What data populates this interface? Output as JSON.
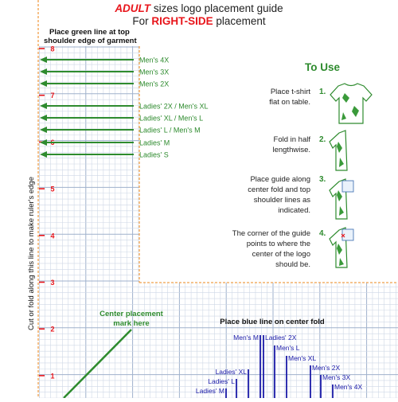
{
  "header": {
    "adult": "ADULT",
    "line1_rest": " sizes logo placement guide",
    "line2_prefix": "For ",
    "right_side": "RIGHT-SIDE",
    "line2_suffix": " placement"
  },
  "green_line_caption": [
    "Place green line at top",
    "shoulder edge of garment"
  ],
  "vertical_caption": "Cut or fold along this line to make ruler's edge",
  "ruler_numbers": [
    "8",
    "7",
    "6",
    "5",
    "4",
    "3",
    "2",
    "1"
  ],
  "green_sizes": [
    "Men's 4X",
    "Men's 3X",
    "Men's 2X",
    "Ladies' 2X / Men's XL",
    "Ladies' XL / Men's L",
    "Ladies' L / Men's M",
    "Ladies' M",
    "Ladies' S"
  ],
  "center_caption": [
    "Center placement",
    "mark here"
  ],
  "blue_line_caption": "Place blue line on center fold",
  "blue_sizes": [
    "Men's M",
    "Ladies' 2X",
    "Men's L",
    "Men's XL",
    "Men's 2X",
    "Men's 3X",
    "Men's 4X",
    "Ladies' XL",
    "Ladies' L",
    "Ladies' M"
  ],
  "to_use": {
    "title": "To Use",
    "steps": [
      {
        "num": "1.",
        "lines": [
          "Place t-shirt",
          "flat on table."
        ]
      },
      {
        "num": "2.",
        "lines": [
          "Fold in half",
          "lengthwise."
        ]
      },
      {
        "num": "3.",
        "lines": [
          "Place guide along",
          "center fold and top",
          "shoulder lines as",
          "indicated."
        ]
      },
      {
        "num": "4.",
        "lines": [
          "The corner of the guide",
          "points to where the",
          "center of the logo",
          "should be."
        ]
      }
    ]
  },
  "colors": {
    "red": "#e8151b",
    "green": "#2e8b2e",
    "blue": "#1a1aa8",
    "grid_minor": "#cfd8e6",
    "grid_major": "#9fb1cc",
    "orange": "#f0a04b"
  }
}
